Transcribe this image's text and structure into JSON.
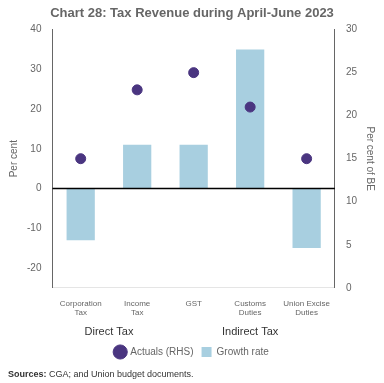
{
  "chart_data": {
    "type": "bar",
    "title": "Chart 28: Tax Revenue during April-June 2023",
    "categories": [
      "Corporation\nTax",
      "Income\nTax",
      "GST",
      "Customs\nDuties",
      "Union Excise\nDuties"
    ],
    "series": [
      {
        "name": "Growth rate",
        "type": "bar",
        "color": "#a8cfe0",
        "values": [
          -13,
          11,
          11,
          35,
          -15
        ]
      },
      {
        "name": "Actuals (RHS)",
        "type": "scatter",
        "color": "#4a3580",
        "marker": "circle",
        "axis": "y2",
        "values": [
          15,
          23,
          25,
          21,
          15
        ]
      }
    ],
    "ylabel": "Per cent",
    "y2label": "Per cent of BE",
    "ylim": [
      -25,
      40
    ],
    "yticks": [
      -20,
      -10,
      0,
      10,
      20,
      30,
      40
    ],
    "y2lim": [
      0,
      30
    ],
    "y2ticks": [
      0,
      5,
      10,
      15,
      20,
      25,
      30
    ],
    "grid": false,
    "legend": "bottom",
    "groups": [
      {
        "label": "Direct Tax",
        "categories": [
          "Corporation\nTax",
          "Income\nTax"
        ]
      },
      {
        "label": "Indirect Tax",
        "categories": [
          "GST",
          "Customs\nDuties",
          "Union Excise\nDuties"
        ]
      }
    ],
    "source": "Sources: CGA; and Union budget documents."
  }
}
